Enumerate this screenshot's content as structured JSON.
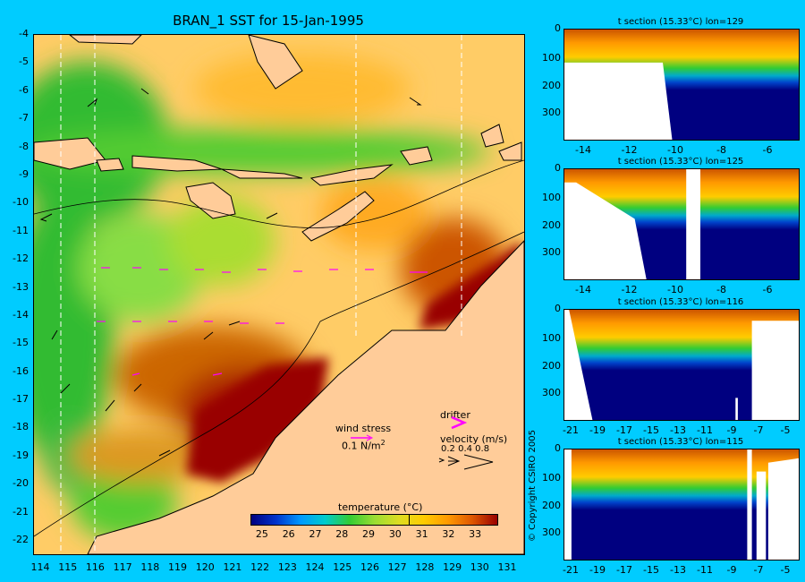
{
  "title": "BRAN_1 SST for 15-Jan-1995",
  "map": {
    "lat_ticks": [
      "-4",
      "-5",
      "-6",
      "-7",
      "-8",
      "-9",
      "-10",
      "-11",
      "-12",
      "-13",
      "-14",
      "-15",
      "-16",
      "-17",
      "-18",
      "-19",
      "-20",
      "-21",
      "-22"
    ],
    "lon_ticks": [
      "114",
      "115",
      "116",
      "117",
      "118",
      "119",
      "120",
      "121",
      "122",
      "123",
      "124",
      "125",
      "126",
      "127",
      "128",
      "129",
      "130",
      "131"
    ]
  },
  "legend": {
    "wind_stress_label": "wind stress",
    "wind_stress_value": "0.1 N/m",
    "wind_stress_exp": "2",
    "drifter_label": "drifter",
    "velocity_label": "velocity (m/s)",
    "velocity_values": "0.2 0.4 0.8"
  },
  "colorbar": {
    "title": "temperature (°C)",
    "ticks": [
      "25",
      "26",
      "27",
      "28",
      "29",
      "30",
      "31",
      "32",
      "33"
    ],
    "range": [
      24.6,
      33.8
    ],
    "marker": 30.5
  },
  "sections": [
    {
      "title": "t section (15.33°C) lon=129",
      "yticks": [
        "0",
        "100",
        "200",
        "300"
      ],
      "xticks": [
        "-14",
        "-12",
        "-10",
        "-8",
        "-6"
      ]
    },
    {
      "title": "t section (15.33°C) lon=125",
      "yticks": [
        "0",
        "100",
        "200",
        "300"
      ],
      "xticks": [
        "-14",
        "-12",
        "-10",
        "-8",
        "-6"
      ]
    },
    {
      "title": "t section (15.33°C) lon=116",
      "yticks": [
        "0",
        "100",
        "200",
        "300"
      ],
      "xticks": [
        "-21",
        "-19",
        "-17",
        "-15",
        "-13",
        "-11",
        "-9",
        "-7",
        "-5"
      ]
    },
    {
      "title": "t section (15.33°C) lon=115",
      "yticks": [
        "0",
        "100",
        "200",
        "300"
      ],
      "xticks": [
        "-21",
        "-19",
        "-17",
        "-15",
        "-13",
        "-11",
        "-9",
        "-7",
        "-5"
      ]
    }
  ],
  "copyright": "© Copyright CSIRO 2005",
  "colors": {
    "background": "#00ccff",
    "land": "#ffcc99",
    "sst_hot": "#a80000",
    "sst_cold": "#000080"
  }
}
